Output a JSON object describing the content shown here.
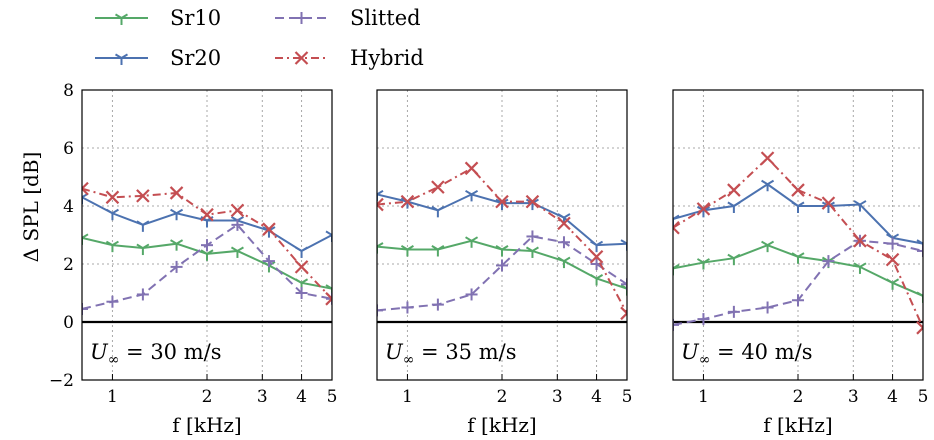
{
  "colors": {
    "Sr10": "#55a868",
    "Sr20": "#4c72b0",
    "Slitted": "#8172b2",
    "Hybrid": "#c44e52",
    "grid": "#bbbbbb",
    "frame": "#000000"
  },
  "legend": [
    {
      "label": "Sr10",
      "series": "Sr10",
      "dash": "solid",
      "marker": "tri"
    },
    {
      "label": "Sr20",
      "series": "Sr20",
      "dash": "solid",
      "marker": "tri"
    },
    {
      "label": "Slitted",
      "series": "Slitted",
      "dash": "dashed",
      "marker": "plus"
    },
    {
      "label": "Hybrid",
      "series": "Hybrid",
      "dash": "dashdot",
      "marker": "x"
    }
  ],
  "chart_data": [
    {
      "type": "line",
      "annotation": "U∞ = 30 m/s",
      "annotation_parts": {
        "symbol": "U",
        "subscript": "∞",
        "rest": " = 30 m/s"
      },
      "xlabel": "f [kHz]",
      "ylabel": "Δ SPL [dB]",
      "xscale": "log",
      "xlim": [
        0.8,
        5
      ],
      "ylim": [
        -2,
        8
      ],
      "xticks": [
        1,
        2,
        3,
        4,
        5
      ],
      "yticks": [
        -2,
        0,
        2,
        4,
        6,
        8
      ],
      "grid": true,
      "x": [
        0.8,
        1.0,
        1.25,
        1.6,
        2.0,
        2.5,
        3.15,
        4.0,
        5.0
      ],
      "series": [
        {
          "name": "Sr10",
          "values": [
            2.9,
            2.65,
            2.55,
            2.7,
            2.35,
            2.45,
            1.95,
            1.35,
            1.15
          ]
        },
        {
          "name": "Sr20",
          "values": [
            4.3,
            3.75,
            3.35,
            3.75,
            3.5,
            3.5,
            3.15,
            2.45,
            3.0
          ]
        },
        {
          "name": "Slitted",
          "values": [
            0.45,
            0.7,
            0.95,
            1.9,
            2.65,
            3.35,
            2.1,
            1.0,
            0.8
          ]
        },
        {
          "name": "Hybrid",
          "values": [
            4.6,
            4.3,
            4.35,
            4.45,
            3.7,
            3.85,
            3.2,
            1.9,
            0.8
          ]
        }
      ]
    },
    {
      "type": "line",
      "annotation": "U∞ = 35 m/s",
      "annotation_parts": {
        "symbol": "U",
        "subscript": "∞",
        "rest": " = 35 m/s"
      },
      "xlabel": "f [kHz]",
      "xscale": "log",
      "xlim": [
        0.8,
        5
      ],
      "ylim": [
        -2,
        8
      ],
      "xticks": [
        1,
        2,
        3,
        4,
        5
      ],
      "grid": true,
      "x": [
        0.8,
        1.0,
        1.25,
        1.6,
        2.0,
        2.5,
        3.15,
        4.0,
        5.0
      ],
      "series": [
        {
          "name": "Sr10",
          "values": [
            2.6,
            2.5,
            2.5,
            2.8,
            2.5,
            2.45,
            2.1,
            1.5,
            1.15
          ]
        },
        {
          "name": "Sr20",
          "values": [
            4.4,
            4.15,
            3.85,
            4.4,
            4.1,
            4.1,
            3.6,
            2.65,
            2.7
          ]
        },
        {
          "name": "Slitted",
          "values": [
            0.4,
            0.5,
            0.6,
            0.95,
            1.95,
            2.95,
            2.75,
            2.0,
            1.3
          ]
        },
        {
          "name": "Hybrid",
          "values": [
            4.05,
            4.15,
            4.65,
            5.3,
            4.15,
            4.15,
            3.4,
            2.25,
            0.3
          ]
        }
      ]
    },
    {
      "type": "line",
      "annotation": "U∞ = 40 m/s",
      "annotation_parts": {
        "symbol": "U",
        "subscript": "∞",
        "rest": " = 40 m/s"
      },
      "xlabel": "f [kHz]",
      "xscale": "log",
      "xlim": [
        0.8,
        5
      ],
      "ylim": [
        -2,
        8
      ],
      "xticks": [
        1,
        2,
        3,
        4,
        5
      ],
      "grid": true,
      "x": [
        0.8,
        1.0,
        1.25,
        1.6,
        2.0,
        2.5,
        3.15,
        4.0,
        5.0
      ],
      "series": [
        {
          "name": "Sr10",
          "values": [
            1.85,
            2.05,
            2.2,
            2.65,
            2.25,
            2.1,
            1.9,
            1.35,
            0.9
          ]
        },
        {
          "name": "Sr20",
          "values": [
            3.55,
            3.85,
            4.0,
            4.75,
            4.0,
            4.0,
            4.05,
            2.9,
            2.7
          ]
        },
        {
          "name": "Slitted",
          "values": [
            -0.1,
            0.1,
            0.35,
            0.5,
            0.75,
            2.1,
            2.8,
            2.7,
            2.45
          ]
        },
        {
          "name": "Hybrid",
          "values": [
            3.25,
            3.9,
            4.55,
            5.65,
            4.55,
            4.1,
            2.8,
            2.15,
            -0.2
          ]
        }
      ]
    }
  ]
}
